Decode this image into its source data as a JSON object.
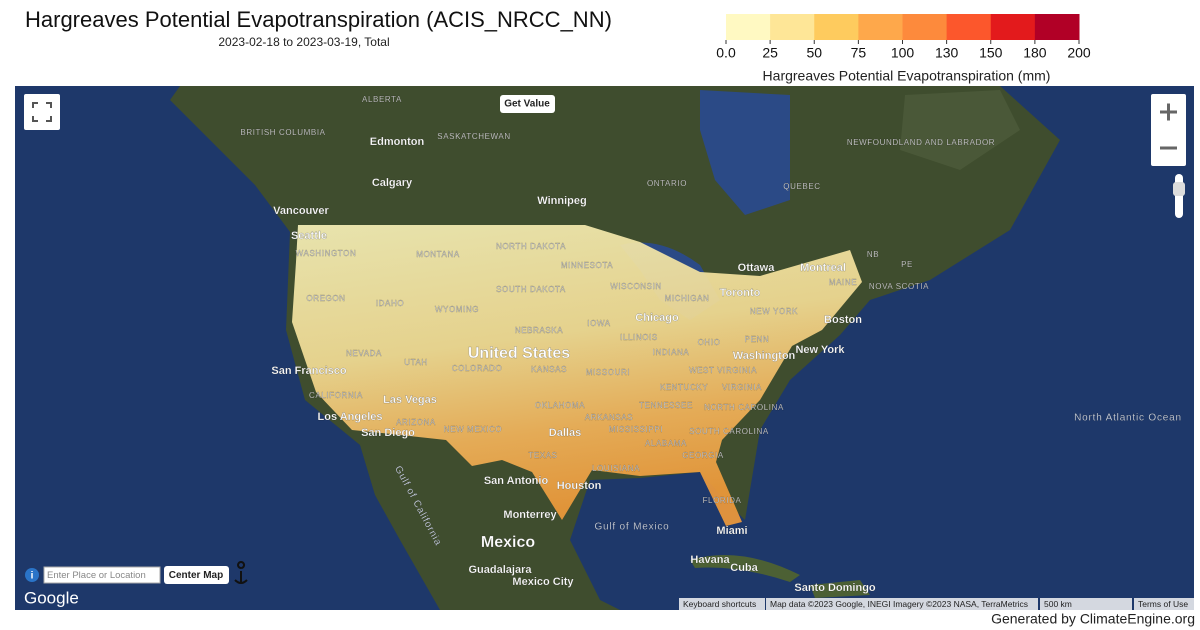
{
  "header": {
    "title": "Hargreaves Potential Evapotranspiration (ACIS_NRCC_NN)",
    "subtitle": "2023-02-18 to 2023-03-19, Total"
  },
  "legend": {
    "colors": [
      "#fff9c2",
      "#fee697",
      "#fecb5e",
      "#fea84b",
      "#fd8a3c",
      "#fc572c",
      "#e31a1c",
      "#b10026"
    ],
    "ticks": [
      {
        "value": 0,
        "label": "0.0"
      },
      25,
      50,
      75,
      100,
      130,
      150,
      180,
      200
    ],
    "label": "Hargreaves Potential Evapotranspiration (mm)"
  },
  "map": {
    "labels": [
      "ALBERTA",
      "BRITISH COLUMBIA",
      "Edmonton",
      "SASKATCHEWAN",
      "Calgary",
      "ONTARIO",
      "QUEBEC",
      "NEWFOUNDLAND AND LABRADOR",
      "Vancouver",
      "Winnipeg",
      "Seattle",
      "WASHINGTON",
      "MONTANA",
      "NORTH DAKOTA",
      "MINNESOTA",
      "Ottawa",
      "Montreal",
      "NB",
      "PE",
      "OREGON",
      "IDAHO",
      "WYOMING",
      "SOUTH DAKOTA",
      "WISCONSIN",
      "MICHIGAN",
      "Toronto",
      "MAINE",
      "NOVA SCOTIA",
      "NEW YORK",
      "Boston",
      "NEBRASKA",
      "IOWA",
      "Chicago",
      "ILLINOIS",
      "OHIO",
      "PENN",
      "Washington",
      "New York",
      "NEVADA",
      "UTAH",
      "United States",
      "COLORADO",
      "KANSAS",
      "MISSOURI",
      "INDIANA",
      "San Francisco",
      "WEST VIRGINIA",
      "KENTUCKY",
      "VIRGINIA",
      "CALIFORNIA",
      "Las Vegas",
      "OKLAHOMA",
      "TENNESSEE",
      "NORTH CAROLINA",
      "Los Angeles",
      "ARIZONA",
      "ARKANSAS",
      "San Diego",
      "NEW MEXICO",
      "MISSISSIPPI",
      "Dallas",
      "SOUTH CAROLINA",
      "ALABAMA",
      "GEORGIA",
      "TEXAS",
      "LOUISIANA",
      "San Antonio",
      "Houston",
      "FLORIDA",
      "Monterrey",
      "Gulf of Mexico",
      "Miami",
      "North Atlantic Ocean",
      "Gulf of California",
      "Mexico",
      "Havana",
      "Cuba",
      "Guadalajara",
      "Mexico City",
      "Santo Domingo"
    ],
    "controls": {
      "get_value": "Get Value",
      "search_placeholder": "Enter Place or Location",
      "center": "Center Map"
    },
    "attribution": [
      "Keyboard shortcuts",
      "Map data ©2023 Google, INEGI Imagery ©2023 NASA, TerraMetrics",
      "500 km",
      "Terms of Use"
    ],
    "logo": "Google"
  },
  "footer": "Generated by ClimateEngine.org"
}
